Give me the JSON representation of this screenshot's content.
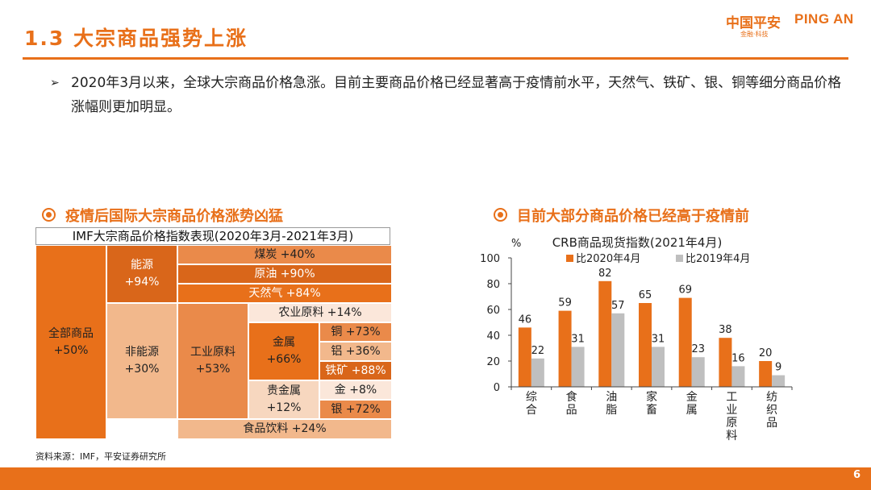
{
  "header": {
    "title": "1.3 大宗商品强势上涨",
    "logo_cn": "中国平安",
    "logo_en": "PING AN",
    "logo_sub": "金融·科技"
  },
  "bullet": {
    "arrow": "➢",
    "text": "2020年3月以来，全球大宗商品价格急涨。目前主要商品价格已经显著高于疫情前水平，天然气、铁矿、银、铜等细分商品价格涨幅则更加明显。"
  },
  "left_section": {
    "heading": "疫情后国际大宗商品价格涨势凶猛",
    "table_title": "IMF大宗商品价格指数表现(2020年3月-2021年3月)",
    "cells": {
      "all": {
        "name": "全部商品",
        "value": "+50%"
      },
      "energy": {
        "name": "能源",
        "value": "+94%"
      },
      "coal": "煤炭 +40%",
      "crude": "原油 +90%",
      "gas": "天然气 +84%",
      "non_energy": {
        "name": "非能源",
        "value": "+30%"
      },
      "agri": "农业原料 +14%",
      "industrial": {
        "name": "工业原料",
        "value": "+53%"
      },
      "metal": {
        "name": "金属",
        "value": "+66%"
      },
      "copper": "铜 +73%",
      "aluminum": "铝 +36%",
      "iron": "铁矿 +88%",
      "precious": {
        "name": "贵金属",
        "value": "+12%"
      },
      "gold": "金 +8%",
      "silver": "银 +72%",
      "food": "食品饮料 +24%"
    },
    "source": "资料来源：IMF，平安证券研究所"
  },
  "right_section": {
    "heading": "目前大部分商品价格已经高于疫情前"
  },
  "chart_data": {
    "type": "bar",
    "title": "CRB商品现货指数(2021年4月)",
    "ylabel": "%",
    "ylim": [
      0,
      100
    ],
    "yticks": [
      0,
      20,
      40,
      60,
      80,
      100
    ],
    "categories": [
      "综合",
      "食品",
      "油脂",
      "家畜",
      "金属",
      "工业原料",
      "纺织品"
    ],
    "series": [
      {
        "name": "比2020年4月",
        "color": "#e8701a",
        "values": [
          46,
          59,
          82,
          65,
          69,
          38,
          20
        ]
      },
      {
        "name": "比2019年4月",
        "color": "#bfbfbf",
        "values": [
          22,
          31,
          57,
          31,
          23,
          16,
          9
        ]
      }
    ],
    "legend": "top",
    "grid": false
  },
  "footer": {
    "page": "6"
  }
}
